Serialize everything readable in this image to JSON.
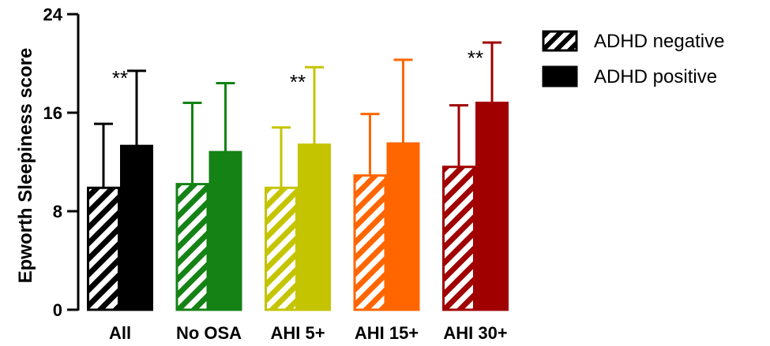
{
  "chart_data": {
    "type": "bar",
    "ylabel": "Epworth Sleepiness score",
    "ylim": [
      0,
      24
    ],
    "yticks": [
      0,
      8,
      16,
      24
    ],
    "categories": [
      "All",
      "No OSA",
      "AHI 5+",
      "AHI 15+",
      "AHI 30+"
    ],
    "series": [
      {
        "name": "ADHD negative",
        "pattern": "hatched",
        "values": [
          9.9,
          10.2,
          9.9,
          10.9,
          11.6
        ],
        "errors": [
          5.2,
          6.6,
          4.9,
          5.0,
          5.0
        ]
      },
      {
        "name": "ADHD positive",
        "pattern": "solid",
        "values": [
          13.3,
          12.8,
          13.4,
          13.5,
          16.8
        ],
        "errors": [
          6.1,
          5.6,
          6.3,
          6.8,
          4.9
        ]
      }
    ],
    "group_colors": [
      "#000000",
      "#148214",
      "#c4c400",
      "#ff6600",
      "#a00000"
    ],
    "significance": [
      "**",
      "",
      "**",
      "",
      "**"
    ],
    "legend_position": "top-right",
    "grid": false
  }
}
